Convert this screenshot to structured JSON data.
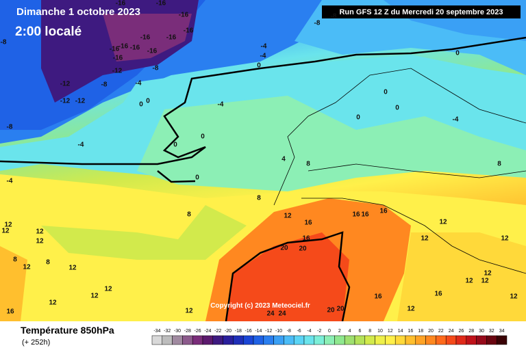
{
  "header": {
    "title": "Dimanche 1 octobre 2023",
    "time": "2:00 localé",
    "run": "Run GFS 12 Z du Mercredi 20 septembre 2023",
    "copyright": "Copyright (c) 2023 Meteociel.fr"
  },
  "footer": {
    "title": "Température 850hPa",
    "lead": "(+ 252h)"
  },
  "legend": {
    "ticks": [
      -34,
      -32,
      -30,
      -28,
      -26,
      -24,
      -22,
      -20,
      -18,
      -16,
      -14,
      -12,
      -10,
      -8,
      -6,
      -4,
      -2,
      0,
      2,
      4,
      6,
      8,
      10,
      12,
      14,
      16,
      18,
      20,
      22,
      24,
      26,
      28,
      30,
      32,
      34
    ],
    "colors": [
      "#d9d9d9",
      "#bdbdbd",
      "#a08aa0",
      "#8c5a8c",
      "#7a2d7a",
      "#5c1a6e",
      "#3e1a80",
      "#2a1f9c",
      "#1f2fb8",
      "#1a46d6",
      "#1f62e6",
      "#2a7ff0",
      "#3aa0f5",
      "#4bbcf7",
      "#5ad4f5",
      "#6ae4ec",
      "#7cefd8",
      "#8cefb5",
      "#8fe88f",
      "#9fe070",
      "#b4e25a",
      "#d2ea4c",
      "#eef04a",
      "#fff04a",
      "#ffd93a",
      "#ffbf2e",
      "#ffa326",
      "#ff8820",
      "#ff6a1c",
      "#f54a1a",
      "#e02a1a",
      "#c0121a",
      "#960a1a",
      "#6a0510",
      "#3a0205"
    ]
  },
  "map": {
    "labels": [
      -16,
      -16,
      -8,
      -8,
      -8,
      -16,
      -16,
      -16,
      -16,
      -16,
      -16,
      -16,
      -16,
      -16,
      -12,
      -12,
      -12,
      -12,
      -8,
      -8,
      -4,
      -8,
      -4,
      -4,
      -4,
      0,
      0,
      0,
      0,
      0,
      0,
      0,
      -4,
      -4,
      0,
      0,
      0,
      -4,
      4,
      8,
      8,
      8,
      8,
      12,
      16,
      16,
      16,
      16,
      12,
      12,
      12,
      16,
      20,
      20,
      12,
      12,
      12,
      12,
      8,
      12,
      8,
      12,
      12,
      12,
      12,
      16,
      24,
      24,
      20,
      20,
      16,
      12,
      12,
      12,
      12,
      12,
      12,
      16
    ]
  }
}
